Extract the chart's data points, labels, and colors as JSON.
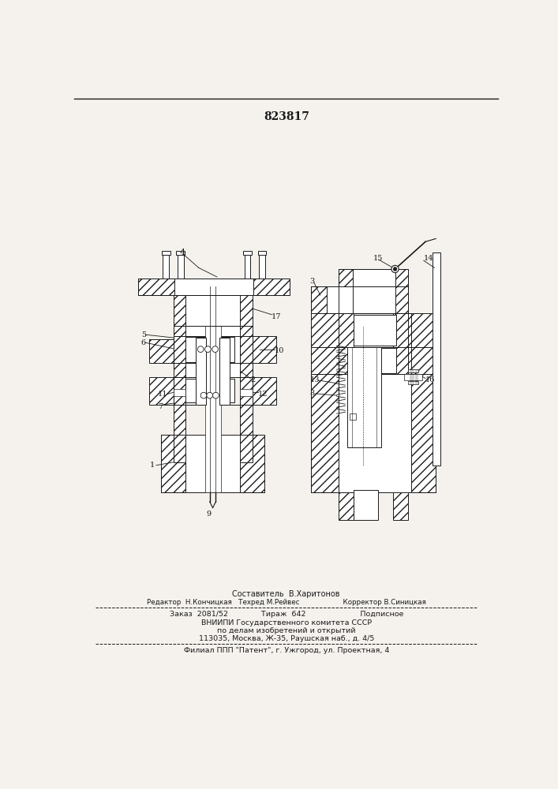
{
  "patent_number": "823817",
  "bg": "#f5f2ee",
  "lc": "#1a1a1a",
  "footer_line1": "Составитель  В.Харитонов",
  "footer_line2": "Редактор  Н.Кончицкая   Техред М.Рейвес                    Корректор В.Синицкая",
  "footer_line3": "Заказ  2081/52              Тираж  642                       Подписное",
  "footer_line4": "ВНИИПИ Государственного комитета СССР",
  "footer_line5": "по делам изобретений и открытий",
  "footer_line6": "113035, Москва, Ж-35, Раушская наб., д. 4/5",
  "footer_line7": "Филиал ППП \"Патент\", г. Ужгород, ул. Проектная, 4"
}
